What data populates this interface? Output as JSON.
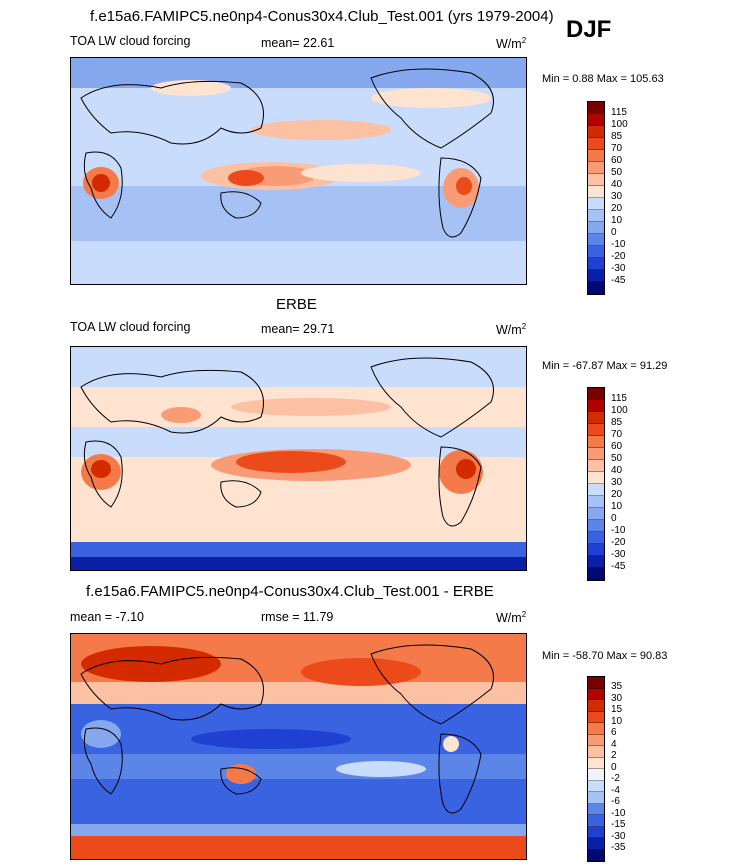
{
  "season": "DJF",
  "panels": [
    {
      "top_title": "f.e15a6.FAMIPC5.ne0np4-Conus30x4.Club_Test.001 (yrs 1979-2004)",
      "left_label": "TOA LW cloud forcing",
      "mean_text": "mean=  22.61",
      "units": "W/m",
      "units_sup": "2",
      "minmax_text": "Min =   0.88 Max = 105.63",
      "colorbar": {
        "ticks": [
          "115",
          "100",
          "85",
          "70",
          "60",
          "50",
          "40",
          "30",
          "20",
          "10",
          "0",
          "-10",
          "-20",
          "-30",
          "-45"
        ],
        "colors": [
          "#7a0000",
          "#b30000",
          "#d42a00",
          "#ec4a1a",
          "#f57a4a",
          "#f99c76",
          "#fcc0a2",
          "#fde3d0",
          "#c9dcfb",
          "#a6c2f4",
          "#85a8ee",
          "#5c85e8",
          "#3a63e2",
          "#1f40d0",
          "#0a20a8",
          "#000a70"
        ]
      }
    },
    {
      "top_title": "ERBE",
      "left_label": "TOA LW cloud forcing",
      "mean_text": "mean=  29.71",
      "units": "W/m",
      "units_sup": "2",
      "minmax_text": "Min = -67.87 Max =  91.29",
      "colorbar": {
        "ticks": [
          "115",
          "100",
          "85",
          "70",
          "60",
          "50",
          "40",
          "30",
          "20",
          "10",
          "0",
          "-10",
          "-20",
          "-30",
          "-45"
        ],
        "colors": [
          "#7a0000",
          "#b30000",
          "#d42a00",
          "#ec4a1a",
          "#f57a4a",
          "#f99c76",
          "#fcc0a2",
          "#fde3d0",
          "#c9dcfb",
          "#a6c2f4",
          "#85a8ee",
          "#5c85e8",
          "#3a63e2",
          "#1f40d0",
          "#0a20a8",
          "#000a70"
        ]
      }
    },
    {
      "top_title": "f.e15a6.FAMIPC5.ne0np4-Conus30x4.Club_Test.001 - ERBE",
      "left_label": "mean =  -7.10",
      "mean_text": "rmse =  11.79",
      "units": "W/m",
      "units_sup": "2",
      "minmax_text": "Min = -58.70 Max =  90.83",
      "colorbar": {
        "ticks": [
          "35",
          "30",
          "15",
          "10",
          "6",
          "4",
          "2",
          "0",
          "-2",
          "-4",
          "-6",
          "-10",
          "-15",
          "-30",
          "-35"
        ],
        "colors": [
          "#7a0000",
          "#b30000",
          "#d42a00",
          "#ec4a1a",
          "#f57a4a",
          "#f99c76",
          "#fcc0a2",
          "#fde3d0",
          "#eef3ff",
          "#c9dcfb",
          "#a6c2f4",
          "#5c85e8",
          "#3a63e2",
          "#1f40d0",
          "#0a20a8",
          "#000a70"
        ]
      }
    }
  ]
}
